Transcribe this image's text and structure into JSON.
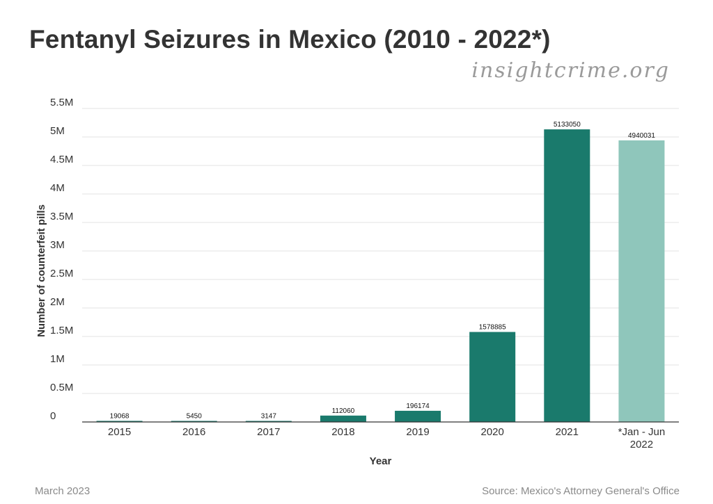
{
  "chart_data": {
    "type": "bar",
    "title": "Fentanyl Seizures in Mexico (2010 - 2022*)",
    "xlabel": "Year",
    "ylabel": "Number of counterfeit pills",
    "ylim": [
      0,
      5500000
    ],
    "grid": true,
    "y_ticks": [
      {
        "value": 0,
        "label": "0"
      },
      {
        "value": 500000,
        "label": "0.5M"
      },
      {
        "value": 1000000,
        "label": "1M"
      },
      {
        "value": 1500000,
        "label": "1.5M"
      },
      {
        "value": 2000000,
        "label": "2M"
      },
      {
        "value": 2500000,
        "label": "2.5M"
      },
      {
        "value": 3000000,
        "label": "3M"
      },
      {
        "value": 3500000,
        "label": "3.5M"
      },
      {
        "value": 4000000,
        "label": "4M"
      },
      {
        "value": 4500000,
        "label": "4.5M"
      },
      {
        "value": 5000000,
        "label": "5M"
      },
      {
        "value": 5500000,
        "label": "5.5M"
      }
    ],
    "categories": [
      "2015",
      "2016",
      "2017",
      "2018",
      "2019",
      "2020",
      "2021",
      "*Jan - Jun 2022"
    ],
    "category_lines": [
      [
        "2015"
      ],
      [
        "2016"
      ],
      [
        "2017"
      ],
      [
        "2018"
      ],
      [
        "2019"
      ],
      [
        "2020"
      ],
      [
        "2021"
      ],
      [
        "*Jan - Jun",
        "2022"
      ]
    ],
    "values": [
      19068,
      5450,
      3147,
      112060,
      196174,
      1578885,
      5133050,
      4940031
    ],
    "bar_colors": [
      "#1a7a6c",
      "#1a7a6c",
      "#1a7a6c",
      "#1a7a6c",
      "#1a7a6c",
      "#1a7a6c",
      "#1a7a6c",
      "#8fc6bb"
    ]
  },
  "brand": "insightcrime.org",
  "footer": {
    "date": "March 2023",
    "source": "Source: Mexico's Attorney General's Office"
  }
}
